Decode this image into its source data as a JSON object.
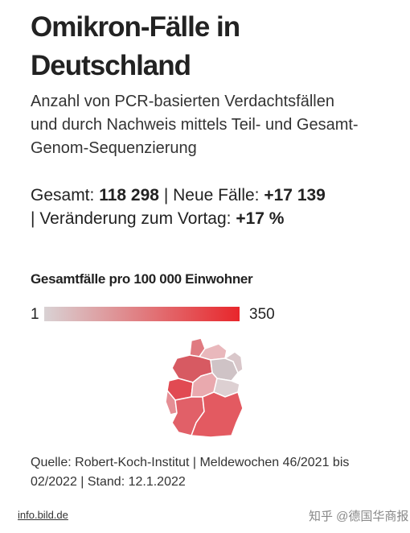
{
  "header": {
    "title_lines": [
      "Omikron-Fälle in",
      "Deutschland"
    ],
    "subtitle_lines": [
      "Anzahl von PCR-basierten Verdachtsfällen",
      "und durch Nachweis mittels Teil- und Gesamt-",
      "Genom-Sequenzierung"
    ]
  },
  "stats": {
    "total_label": "Gesamt:",
    "total_value": "118 298",
    "separator": "|",
    "new_label": "Neue Fälle:",
    "new_value": "+17 139",
    "change_label": "Veränderung zum Vortag:",
    "change_value": "+17 %"
  },
  "legend": {
    "title": "Gesamtfälle pro 100 000 Einwohner",
    "min": 1,
    "max": 350,
    "color_min": "#d9d2d4",
    "color_max": "#e8262b"
  },
  "source_lines": [
    "Quelle: Robert-Koch-Institut | Meldewochen 46/2021 bis",
    "02/2022 | Stand: 12.1.2022"
  ],
  "footer": {
    "link": "info.bild.de",
    "watermark": "知乎 @德国华商报"
  }
}
